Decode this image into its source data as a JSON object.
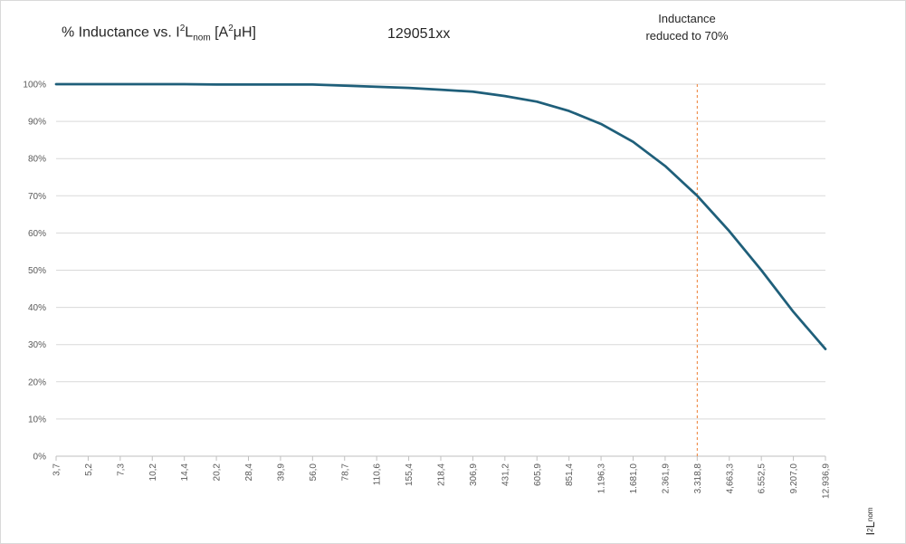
{
  "chart_data": {
    "type": "line",
    "title": {
      "prefix": "% Inductance vs. I",
      "sup1": "2",
      "mid": "L",
      "sub1": "nom",
      "unit_open": " [A",
      "sup2": "2",
      "unit_close": "μH]"
    },
    "part_number": "129051xx",
    "annotation": {
      "line1": "Inductance",
      "line2": "reduced to 70%",
      "category": "3.318,8",
      "color": "#ed7d31"
    },
    "x_axis_title": {
      "base": "I",
      "sup": "2",
      "mid": "L",
      "sub": "nom"
    },
    "categories": [
      "3,7",
      "5,2",
      "7,3",
      "10,2",
      "14,4",
      "20,2",
      "28,4",
      "39,9",
      "56,0",
      "78,7",
      "110,6",
      "155,4",
      "218,4",
      "306,9",
      "431,2",
      "605,9",
      "851,4",
      "1.196,3",
      "1.681,0",
      "2.361,9",
      "3.318,8",
      "4,663,3",
      "6.552,5",
      "9.207,0",
      "12.936,9"
    ],
    "series": [
      {
        "name": "% Inductance",
        "color": "#1f5f7a",
        "values": [
          100,
          100,
          100,
          100,
          100,
          99.9,
          99.9,
          99.9,
          99.9,
          99.6,
          99.3,
          99.0,
          98.5,
          98.0,
          96.8,
          95.3,
          92.8,
          89.3,
          84.5,
          78.0,
          70.0,
          60.5,
          50.0,
          38.8,
          28.8
        ]
      }
    ],
    "y_ticks": [
      "0%",
      "10%",
      "20%",
      "30%",
      "40%",
      "50%",
      "60%",
      "70%",
      "80%",
      "90%",
      "100%"
    ],
    "ylim": [
      0,
      100
    ],
    "grid": true,
    "legend": "none"
  }
}
